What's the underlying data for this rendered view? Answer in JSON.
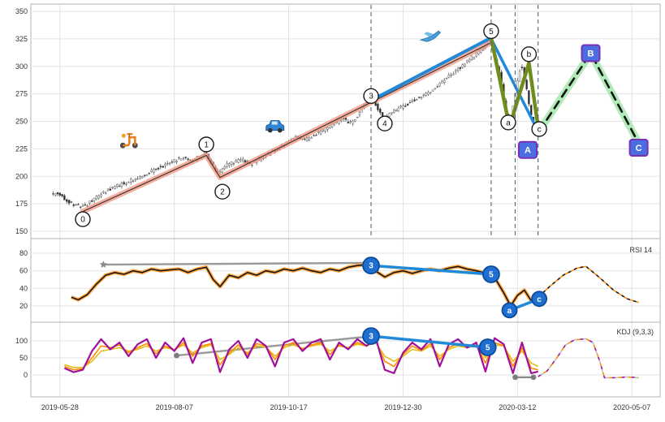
{
  "figure": {
    "bg": "#ffffff",
    "border_color": "#b3b3b3",
    "grid_color": "#e3e3e3",
    "event_line_color": "#4a6785"
  },
  "x_axis": {
    "domain": [
      -12,
      262
    ],
    "ticks": [
      {
        "t": 0,
        "label": "2019-05-28"
      },
      {
        "t": 50,
        "label": "2019-08-07"
      },
      {
        "t": 100,
        "label": "2019-10-17"
      },
      {
        "t": 150,
        "label": "2019-12-30"
      },
      {
        "t": 200,
        "label": "2020-03-12"
      },
      {
        "t": 250,
        "label": "2020-05-07"
      }
    ]
  },
  "panels": {
    "price": {
      "ticks": [
        150,
        175,
        200,
        225,
        250,
        275,
        300,
        325,
        350
      ]
    },
    "rsi": {
      "label": "RSI 14",
      "ticks": [
        20,
        40,
        60,
        80
      ]
    },
    "kdj": {
      "label": "KDJ (9,3,3)",
      "ticks": [
        0,
        50,
        100
      ]
    }
  },
  "chart_data": [
    {
      "name": "price",
      "type": "candlestick",
      "ylim": [
        146,
        356
      ],
      "y_ticks": [
        150,
        175,
        200,
        225,
        250,
        275,
        300,
        325,
        350
      ],
      "price_path": {
        "t": [
          0,
          3,
          6,
          10,
          14,
          18,
          22,
          26,
          30,
          34,
          38,
          42,
          46,
          50,
          54,
          58,
          62,
          64,
          66,
          68,
          70,
          73,
          76,
          80,
          84,
          88,
          92,
          96,
          100,
          104,
          108,
          112,
          116,
          120,
          124,
          128,
          132,
          136,
          139,
          142,
          145,
          148,
          152,
          156,
          160,
          164,
          168,
          172,
          176,
          180,
          184,
          188,
          190,
          193,
          196,
          197,
          199,
          202,
          204,
          206,
          209
        ],
        "price": [
          184,
          179,
          175,
          172,
          177,
          183,
          188,
          192,
          195,
          198,
          202,
          206,
          210,
          214,
          217,
          214,
          219,
          222,
          215,
          207,
          202,
          210,
          212,
          215,
          211,
          216,
          221,
          226,
          231,
          236,
          233,
          238,
          243,
          248,
          252,
          248,
          260,
          272,
          263,
          252,
          257,
          261,
          265,
          270,
          274,
          280,
          287,
          294,
          300,
          307,
          314,
          325,
          312,
          290,
          252,
          245,
          270,
          303,
          285,
          258,
          240
        ]
      },
      "overlays": [
        {
          "name": "wave-0-5-trendline",
          "points": [
            [
              10,
              168
            ],
            [
              64,
              219
            ],
            [
              70,
              199
            ],
            [
              188,
              321
            ]
          ],
          "color": "#f2937d",
          "width": 6.5,
          "opacity": 0.75,
          "core_color": "#333333"
        },
        {
          "name": "wave-3-5-line",
          "points": [
            [
              136,
              269
            ],
            [
              188.5,
              326
            ]
          ],
          "color": "#2289d8",
          "width": 4
        },
        {
          "name": "wave-5-c-line",
          "points": [
            [
              189,
              323
            ],
            [
              209,
              241
            ]
          ],
          "color": "#2289d8",
          "width": 3.5
        },
        {
          "name": "abc-zigzag-line",
          "points": [
            [
              188.5,
              326
            ],
            [
              196.5,
              245
            ],
            [
              205,
              303
            ],
            [
              209.5,
              238
            ]
          ],
          "color": "#6f8c1f",
          "width": 4.5
        },
        {
          "name": "projection-line",
          "points": [
            [
              209.5,
              241
            ],
            [
              232,
              312
            ],
            [
              253,
              230
            ]
          ],
          "color": "#141414",
          "width": 2.6,
          "dash": "10 7",
          "glow_color": "#9fe6a9",
          "glow_width": 9,
          "glow_opacity": 0.8
        }
      ],
      "event_lines": [
        136,
        188.5,
        199,
        209
      ],
      "wave_markers": [
        {
          "label": "0",
          "t": 10,
          "price": 161
        },
        {
          "label": "1",
          "t": 64,
          "price": 229
        },
        {
          "label": "2",
          "t": 71,
          "price": 186
        },
        {
          "label": "3",
          "t": 136,
          "price": 273
        },
        {
          "label": "4",
          "t": 142,
          "price": 248
        },
        {
          "label": "5",
          "t": 188.5,
          "price": 332
        },
        {
          "label": "a",
          "t": 196,
          "price": 249
        },
        {
          "label": "b",
          "t": 205,
          "price": 311
        },
        {
          "label": "c",
          "t": 209.5,
          "price": 243
        }
      ],
      "square_markers": [
        {
          "label": "A",
          "t": 204.5,
          "price": 224
        },
        {
          "label": "B",
          "t": 232,
          "price": 312
        },
        {
          "label": "C",
          "t": 253,
          "price": 226
        }
      ],
      "annotations": [
        {
          "icon": "scooter-icon",
          "t": 30,
          "price": 234
        },
        {
          "icon": "car-icon",
          "t": 94,
          "price": 247
        },
        {
          "icon": "plane-icon",
          "t": 162,
          "price": 327
        }
      ]
    },
    {
      "name": "rsi",
      "type": "line",
      "label": "RSI 14",
      "ylim": [
        10,
        88
      ],
      "y_ticks": [
        20,
        40,
        60,
        80
      ],
      "line": {
        "color": "#161616",
        "glow_color": "#ff9d2e",
        "t": [
          5,
          8,
          12,
          16,
          20,
          24,
          28,
          32,
          36,
          40,
          44,
          48,
          52,
          56,
          60,
          64,
          67,
          70,
          74,
          78,
          82,
          86,
          90,
          94,
          98,
          102,
          106,
          110,
          114,
          118,
          122,
          126,
          130,
          134,
          136,
          139,
          142,
          146,
          150,
          154,
          158,
          162,
          166,
          170,
          174,
          178,
          182,
          185,
          188,
          191,
          194,
          197,
          200,
          203,
          206,
          209
        ],
        "v": [
          30,
          27,
          33,
          45,
          55,
          58,
          56,
          60,
          58,
          62,
          60,
          61,
          62,
          58,
          62,
          64,
          50,
          42,
          55,
          52,
          58,
          55,
          60,
          58,
          62,
          60,
          63,
          60,
          58,
          62,
          60,
          64,
          66,
          67,
          64,
          58,
          53,
          58,
          60,
          57,
          60,
          62,
          60,
          63,
          65,
          62,
          60,
          58,
          57,
          48,
          35,
          20,
          32,
          38,
          26,
          30
        ]
      },
      "connectors": [
        {
          "name": "rsi-trend-connector",
          "color": "#9a9a9a",
          "width": 2.4,
          "star": true,
          "points": [
            [
              19,
              67
            ],
            [
              135,
              69
            ]
          ]
        },
        {
          "name": "rsi-wave-3-5-connector",
          "color": "#2289d8",
          "width": 3.5,
          "points": [
            [
              136,
              66
            ],
            [
              188.5,
              56
            ]
          ]
        },
        {
          "name": "rsi-wave-a-c-connector",
          "color": "#2289d8",
          "width": 3.5,
          "points": [
            [
              196.5,
              15
            ],
            [
              209.5,
              28
            ]
          ]
        }
      ],
      "projection": {
        "colors": [
          "#161616",
          "#ff8c00"
        ],
        "points": [
          [
            209,
            30
          ],
          [
            214,
            42
          ],
          [
            220,
            55
          ],
          [
            226,
            63
          ],
          [
            230,
            65
          ],
          [
            236,
            52
          ],
          [
            242,
            38
          ],
          [
            248,
            28
          ],
          [
            253,
            24
          ]
        ]
      },
      "markers": [
        {
          "label": "3",
          "t": 136,
          "v": 66
        },
        {
          "label": "5",
          "t": 188.5,
          "v": 56
        },
        {
          "label": "a",
          "t": 196.5,
          "v": 15
        },
        {
          "label": "c",
          "t": 209.5,
          "v": 28
        }
      ]
    },
    {
      "name": "kdj",
      "type": "line",
      "label": "KDJ (9,3,3)",
      "ylim": [
        -15,
        135
      ],
      "y_ticks": [
        0,
        50,
        100
      ],
      "t": [
        2,
        6,
        10,
        14,
        18,
        22,
        26,
        30,
        34,
        38,
        42,
        46,
        50,
        54,
        58,
        62,
        66,
        70,
        74,
        78,
        82,
        86,
        90,
        94,
        98,
        102,
        106,
        110,
        114,
        118,
        122,
        126,
        130,
        134,
        138,
        142,
        146,
        150,
        154,
        158,
        162,
        166,
        170,
        174,
        178,
        182,
        186,
        190,
        194,
        198,
        202,
        206,
        209
      ],
      "series": [
        {
          "name": "K",
          "color": "#ff8c00",
          "width": 1.6,
          "v": [
            25,
            15,
            18,
            50,
            85,
            80,
            88,
            65,
            80,
            92,
            62,
            85,
            72,
            95,
            55,
            85,
            92,
            30,
            65,
            88,
            60,
            92,
            85,
            45,
            85,
            95,
            75,
            88,
            95,
            60,
            88,
            78,
            95,
            85,
            100,
            40,
            25,
            60,
            85,
            72,
            92,
            45,
            80,
            92,
            82,
            88,
            35,
            95,
            85,
            25,
            80,
            20,
            15
          ]
        },
        {
          "name": "D",
          "color": "#e3bc1a",
          "width": 1.6,
          "v": [
            30,
            22,
            22,
            40,
            70,
            75,
            80,
            70,
            75,
            85,
            70,
            80,
            75,
            88,
            65,
            80,
            88,
            45,
            60,
            80,
            65,
            85,
            82,
            55,
            80,
            88,
            78,
            85,
            90,
            70,
            85,
            80,
            90,
            85,
            95,
            55,
            40,
            55,
            75,
            70,
            85,
            55,
            75,
            85,
            80,
            85,
            50,
            88,
            85,
            40,
            70,
            35,
            25
          ]
        },
        {
          "name": "J",
          "color": "#a0109a",
          "width": 2.2,
          "v": [
            20,
            8,
            15,
            70,
            105,
            75,
            95,
            55,
            90,
            105,
            50,
            95,
            70,
            108,
            35,
            95,
            105,
            8,
            75,
            100,
            50,
            105,
            85,
            25,
            95,
            105,
            70,
            95,
            105,
            45,
            95,
            75,
            105,
            85,
            110,
            15,
            5,
            65,
            95,
            75,
            105,
            25,
            90,
            105,
            80,
            95,
            10,
            108,
            90,
            5,
            95,
            5,
            10
          ]
        }
      ],
      "connectors": [
        {
          "name": "kdj-trend-connector",
          "color": "#9a9a9a",
          "width": 2.4,
          "dots": [
            0
          ],
          "points": [
            [
              51,
              57
            ],
            [
              134,
              112
            ]
          ]
        },
        {
          "name": "kdj-wave-3-5-connector",
          "color": "#2289d8",
          "width": 3.5,
          "points": [
            [
              136,
              114
            ],
            [
              187,
              81
            ]
          ]
        },
        {
          "name": "kdj-low-connector",
          "color": "#8a8a8a",
          "width": 2.4,
          "dots": [
            0,
            1
          ],
          "points": [
            [
              199,
              -7
            ],
            [
              207,
              -7
            ]
          ]
        }
      ],
      "projection": {
        "colors": [
          "#a0109a",
          "#ff8c00",
          "#c0c0c0"
        ],
        "points": [
          [
            209,
            -5
          ],
          [
            213,
            12
          ],
          [
            217,
            48
          ],
          [
            221,
            88
          ],
          [
            225,
            103
          ],
          [
            230,
            106
          ],
          [
            233,
            95
          ],
          [
            236,
            40
          ],
          [
            238,
            -8
          ],
          [
            243,
            -8
          ],
          [
            248,
            -6
          ],
          [
            253,
            -8
          ]
        ]
      },
      "markers": [
        {
          "label": "3",
          "t": 136,
          "v": 114
        },
        {
          "label": "5",
          "t": 187,
          "v": 81
        }
      ]
    }
  ]
}
